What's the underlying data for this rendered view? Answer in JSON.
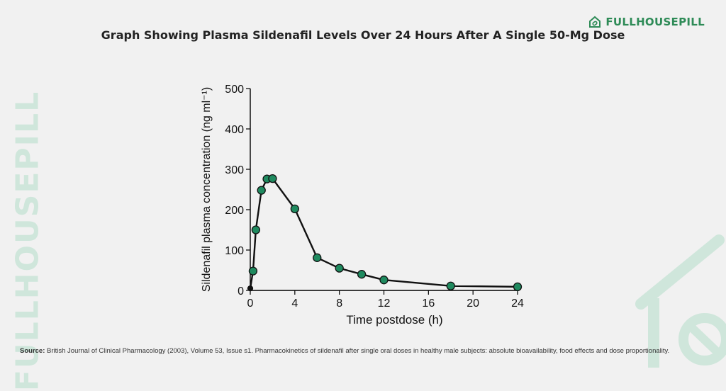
{
  "page": {
    "title": "Graph Showing Plasma Sildenafil Levels Over 24 Hours After A Single 50-Mg Dose",
    "brand": "FULLHOUSEPILL",
    "watermark": "FULLHOUSEPILL",
    "source_label": "Source:",
    "source_text": " British Journal of Clinical Pharmacology (2003), Volume 53, Issue s1.  Pharmacokinetics of sildenafil after single oral doses in healthy male subjects: absolute bioavailability, food effects and dose proportionality.",
    "colors": {
      "brand": "#2e8b57",
      "marker": "#1f8a5f",
      "watermark": "#cfe6db",
      "background": "#f1f1f1"
    },
    "icons": {
      "brand": "house-logo-icon",
      "watermark": "house-watermark-icon"
    }
  },
  "chart_data": {
    "type": "line",
    "xlabel": "Time postdose (h)",
    "ylabel": "Sildenafil plasma concentration (ng ml⁻¹)",
    "xlim": [
      0,
      24
    ],
    "ylim": [
      0,
      500
    ],
    "xticks": [
      "0",
      "4",
      "8",
      "12",
      "16",
      "20",
      "24"
    ],
    "yticks": [
      "0",
      "100",
      "200",
      "300",
      "400",
      "500"
    ],
    "grid": false,
    "series": [
      {
        "x": [
          0,
          0.25,
          0.5,
          1,
          1.5,
          2,
          4,
          6,
          8,
          10,
          12,
          18,
          24
        ],
        "y": [
          5,
          48,
          150,
          248,
          276,
          277,
          202,
          81,
          55,
          40,
          26,
          11,
          9
        ]
      }
    ]
  }
}
